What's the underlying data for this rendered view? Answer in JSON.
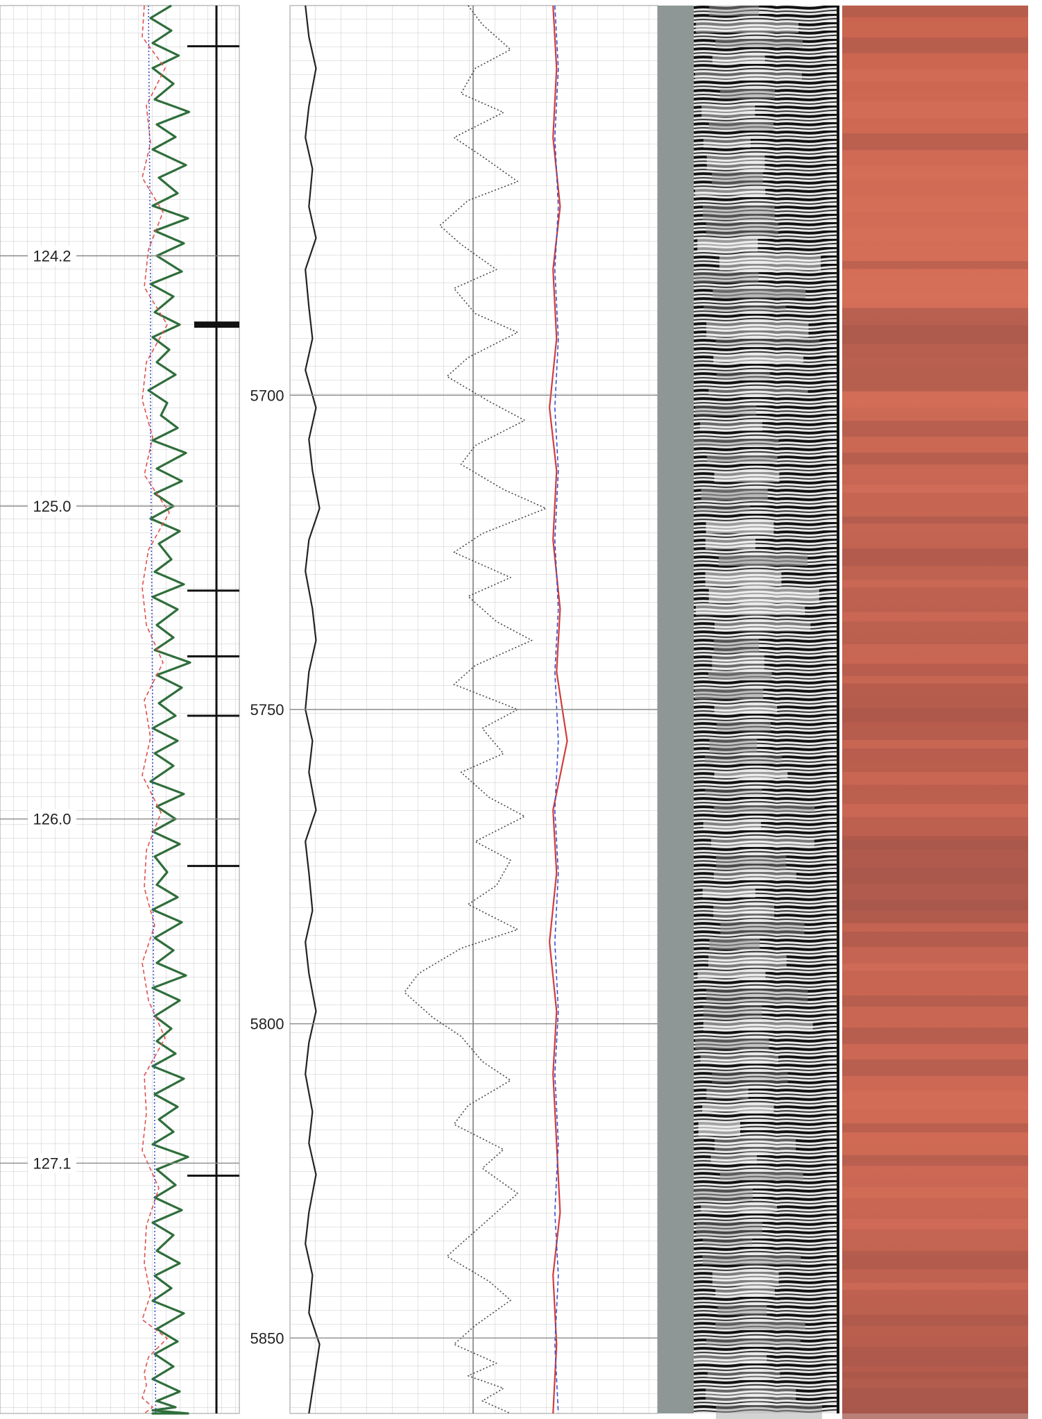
{
  "chart_data": {
    "type": "line",
    "title": "",
    "tracks": [
      {
        "name": "time-track",
        "kind": "curves",
        "axis": "y",
        "ylim": [
          123.4,
          127.9
        ],
        "tick_labels": [
          "124.2",
          "125.0",
          "126.0",
          "127.1"
        ],
        "ticks": [
          124.2,
          125.0,
          126.0,
          127.1
        ],
        "series": [
          {
            "color": "#2f6e3b",
            "style": "solid",
            "x_range": [
              0,
              1
            ],
            "x": [
              0.78,
              0.58,
              0.78,
              0.6,
              0.85,
              0.6,
              0.8,
              0.62,
              0.95,
              0.64,
              0.82,
              0.6,
              0.92,
              0.66,
              0.84,
              0.6,
              0.94,
              0.62,
              0.9,
              0.64,
              0.88,
              0.58,
              0.8,
              0.62,
              0.86,
              0.6,
              0.76,
              0.64,
              0.82,
              0.56,
              0.74,
              0.68,
              0.84,
              0.6,
              0.92,
              0.64,
              0.88,
              0.62,
              0.8,
              0.58,
              0.86,
              0.66,
              0.78,
              0.62,
              0.9,
              0.6,
              0.84,
              0.64,
              0.8,
              0.62,
              0.96,
              0.64,
              0.88,
              0.66,
              0.82,
              0.6,
              0.84,
              0.62,
              0.8,
              0.58,
              0.9,
              0.64,
              0.82,
              0.6,
              0.86,
              0.62,
              0.74,
              0.64,
              0.84,
              0.6,
              0.88,
              0.62,
              0.8,
              0.64,
              0.92,
              0.6,
              0.86,
              0.62,
              0.78,
              0.64,
              0.82,
              0.6,
              0.9,
              0.62,
              0.84,
              0.66,
              0.8,
              0.6,
              0.94,
              0.64,
              0.82,
              0.62,
              0.88,
              0.6,
              0.8,
              0.64,
              0.86,
              0.62,
              0.78,
              0.6,
              0.9,
              0.64,
              0.84,
              0.62,
              0.8,
              0.6,
              0.86,
              0.64,
              0.82,
              0.6,
              0.94,
              0.62,
              0.8,
              0.64,
              0.86,
              0.6,
              0.78,
              0.62,
              0.84
            ],
            "y": [
              123.4,
              123.44,
              123.48,
              123.52,
              123.56,
              123.6,
              123.65,
              123.7,
              123.74,
              123.78,
              123.82,
              123.86,
              123.91,
              123.95,
              124.0,
              124.04,
              124.08,
              124.12,
              124.16,
              124.2,
              124.25,
              124.29,
              124.33,
              124.38,
              124.42,
              124.46,
              124.5,
              124.54,
              124.58,
              124.63,
              124.67,
              124.71,
              124.75,
              124.79,
              124.83,
              124.88,
              124.92,
              124.96,
              125.0,
              125.04,
              125.08,
              125.12,
              125.17,
              125.21,
              125.25,
              125.29,
              125.33,
              125.38,
              125.42,
              125.46,
              125.5,
              125.54,
              125.58,
              125.63,
              125.67,
              125.71,
              125.75,
              125.79,
              125.83,
              125.88,
              125.92,
              125.96,
              126.0,
              126.04,
              126.08,
              126.12,
              126.17,
              126.21,
              126.25,
              126.29,
              126.33,
              126.38,
              126.42,
              126.46,
              126.5,
              126.54,
              126.58,
              126.63,
              126.67,
              126.71,
              126.75,
              126.79,
              126.83,
              126.88,
              126.92,
              126.96,
              127.0,
              127.04,
              127.08,
              127.12,
              127.17,
              127.21,
              127.25,
              127.29,
              127.33,
              127.38,
              127.42,
              127.46,
              127.5,
              127.54,
              127.58,
              127.63,
              127.67,
              127.71,
              127.75,
              127.79,
              127.83,
              127.86,
              127.88,
              127.89,
              127.9,
              127.9,
              127.9,
              127.9,
              127.9,
              127.9,
              127.9,
              127.9,
              127.9
            ]
          },
          {
            "color": "#e05050",
            "style": "dashed",
            "x_range": [
              0,
              1
            ],
            "x": [
              0.52,
              0.5,
              0.72,
              0.54,
              0.58,
              0.5,
              0.7,
              0.56,
              0.52,
              0.74,
              0.54,
              0.5,
              0.6,
              0.52,
              0.76,
              0.56,
              0.5,
              0.54,
              0.7,
              0.52,
              0.58,
              0.5,
              0.68,
              0.54,
              0.52,
              0.62,
              0.5,
              0.56,
              0.72,
              0.52,
              0.54,
              0.5,
              0.66,
              0.54,
              0.52,
              0.58,
              0.5,
              0.74,
              0.56,
              0.52,
              0.54,
              0.5,
              0.6,
              0.52
            ],
            "y": [
              123.4,
              123.5,
              123.6,
              123.72,
              123.84,
              123.95,
              124.06,
              124.18,
              124.3,
              124.42,
              124.54,
              124.66,
              124.78,
              124.9,
              125.02,
              125.14,
              125.26,
              125.38,
              125.5,
              125.62,
              125.74,
              125.86,
              125.98,
              126.1,
              126.22,
              126.34,
              126.46,
              126.58,
              126.7,
              126.82,
              126.94,
              127.06,
              127.18,
              127.3,
              127.42,
              127.52,
              127.6,
              127.66,
              127.72,
              127.77,
              127.81,
              127.85,
              127.88,
              127.9
            ]
          },
          {
            "color": "#3a4fd0",
            "style": "dotted",
            "x_range": [
              0,
              1
            ],
            "x": [
              0.56,
              0.57,
              0.58,
              0.58,
              0.59,
              0.6,
              0.6,
              0.61,
              0.62,
              0.62,
              0.63
            ],
            "y": [
              123.4,
              123.85,
              124.3,
              124.75,
              125.2,
              125.65,
              126.1,
              126.55,
              127.0,
              127.45,
              127.9
            ]
          }
        ],
        "markers": [
          {
            "y": 123.53,
            "heavy": false
          },
          {
            "y": 124.42,
            "heavy": true
          },
          {
            "y": 125.27,
            "heavy": false
          },
          {
            "y": 125.48,
            "heavy": false
          },
          {
            "y": 125.67,
            "heavy": false
          },
          {
            "y": 126.15,
            "heavy": false
          },
          {
            "y": 127.14,
            "heavy": false
          }
        ]
      },
      {
        "name": "depth-track",
        "kind": "curves",
        "axis": "y",
        "ylim": [
          5638,
          5862
        ],
        "tick_labels": [
          "5700",
          "5750",
          "5800",
          "5850"
        ],
        "ticks": [
          5700,
          5750,
          5800,
          5850
        ],
        "series": [
          {
            "color": "#222222",
            "style": "solid",
            "x_range": [
              0,
              1
            ],
            "x": [
              0.02,
              0.03,
              0.05,
              0.03,
              0.02,
              0.04,
              0.03,
              0.05,
              0.02,
              0.03,
              0.04,
              0.02,
              0.05,
              0.03,
              0.04,
              0.06,
              0.03,
              0.02,
              0.04,
              0.05,
              0.03,
              0.02,
              0.04,
              0.03,
              0.05,
              0.02,
              0.03,
              0.04,
              0.02,
              0.03,
              0.05,
              0.03,
              0.02,
              0.04,
              0.03,
              0.05,
              0.03,
              0.02,
              0.04,
              0.03,
              0.06,
              0.03
            ],
            "y": [
              5638,
              5643,
              5648,
              5654,
              5659,
              5664,
              5670,
              5675,
              5680,
              5686,
              5691,
              5696,
              5702,
              5707,
              5712,
              5718,
              5723,
              5728,
              5734,
              5739,
              5744,
              5750,
              5755,
              5760,
              5766,
              5771,
              5776,
              5782,
              5787,
              5792,
              5798,
              5803,
              5808,
              5814,
              5819,
              5824,
              5830,
              5835,
              5840,
              5846,
              5851,
              5862
            ]
          },
          {
            "color": "#444444",
            "style": "dotted",
            "x_range": [
              0,
              1
            ],
            "x": [
              0.48,
              0.52,
              0.6,
              0.5,
              0.46,
              0.58,
              0.44,
              0.52,
              0.62,
              0.48,
              0.4,
              0.46,
              0.56,
              0.44,
              0.5,
              0.62,
              0.48,
              0.42,
              0.54,
              0.64,
              0.5,
              0.46,
              0.58,
              0.7,
              0.52,
              0.44,
              0.6,
              0.48,
              0.56,
              0.66,
              0.5,
              0.44,
              0.62,
              0.52,
              0.58,
              0.46,
              0.54,
              0.64,
              0.5,
              0.6,
              0.56,
              0.48,
              0.62,
              0.46,
              0.34,
              0.3,
              0.38,
              0.46,
              0.52,
              0.6,
              0.48,
              0.44,
              0.58,
              0.52,
              0.62,
              0.56,
              0.48,
              0.42,
              0.54,
              0.6,
              0.5,
              0.44,
              0.56,
              0.48,
              0.58,
              0.52,
              0.6
            ],
            "y": [
              5638,
              5641,
              5645,
              5648,
              5652,
              5655,
              5659,
              5662,
              5666,
              5669,
              5673,
              5676,
              5680,
              5683,
              5687,
              5690,
              5694,
              5697,
              5701,
              5704,
              5708,
              5711,
              5715,
              5718,
              5722,
              5725,
              5729,
              5732,
              5736,
              5739,
              5743,
              5746,
              5750,
              5753,
              5757,
              5760,
              5764,
              5767,
              5771,
              5774,
              5778,
              5781,
              5785,
              5788,
              5792,
              5795,
              5799,
              5802,
              5806,
              5809,
              5813,
              5816,
              5820,
              5823,
              5827,
              5830,
              5834,
              5837,
              5841,
              5844,
              5848,
              5851,
              5854,
              5856,
              5858,
              5860,
              5862
            ]
          },
          {
            "color": "#d23c3c",
            "style": "solid",
            "x_range": [
              0,
              1
            ],
            "x": [
              0.72,
              0.73,
              0.72,
              0.74,
              0.72,
              0.73,
              0.71,
              0.73,
              0.72,
              0.74,
              0.73,
              0.76,
              0.72,
              0.73,
              0.71,
              0.73,
              0.72,
              0.73,
              0.74,
              0.72,
              0.73,
              0.72
            ],
            "y": [
              5638,
              5648,
              5659,
              5670,
              5680,
              5691,
              5702,
              5712,
              5723,
              5734,
              5744,
              5755,
              5766,
              5776,
              5787,
              5798,
              5808,
              5819,
              5830,
              5840,
              5851,
              5862
            ]
          },
          {
            "color": "#3a4fd0",
            "style": "dashed",
            "x_range": [
              0,
              1
            ],
            "x": [
              0.725,
              0.735,
              0.725,
              0.735,
              0.725,
              0.735,
              0.725,
              0.735,
              0.725,
              0.735,
              0.725,
              0.735,
              0.725,
              0.735,
              0.725,
              0.735,
              0.725,
              0.735,
              0.725,
              0.735,
              0.725,
              0.735
            ],
            "y": [
              5638,
              5648,
              5659,
              5670,
              5680,
              5691,
              5702,
              5712,
              5723,
              5734,
              5744,
              5755,
              5766,
              5776,
              5787,
              5798,
              5808,
              5819,
              5830,
              5840,
              5851,
              5862
            ]
          }
        ]
      },
      {
        "name": "acoustic-image-track",
        "kind": "image",
        "colors": {
          "base": "#8f9796",
          "dark": "#1a1a1a",
          "light": "#f2f2f2"
        }
      },
      {
        "name": "core-color-track",
        "kind": "image",
        "colors": {
          "base": "#c96a55",
          "dark": "#a2554a",
          "light": "#d9715a"
        },
        "dark_bands": [
          124.5,
          126.2,
          127.9
        ]
      }
    ]
  }
}
